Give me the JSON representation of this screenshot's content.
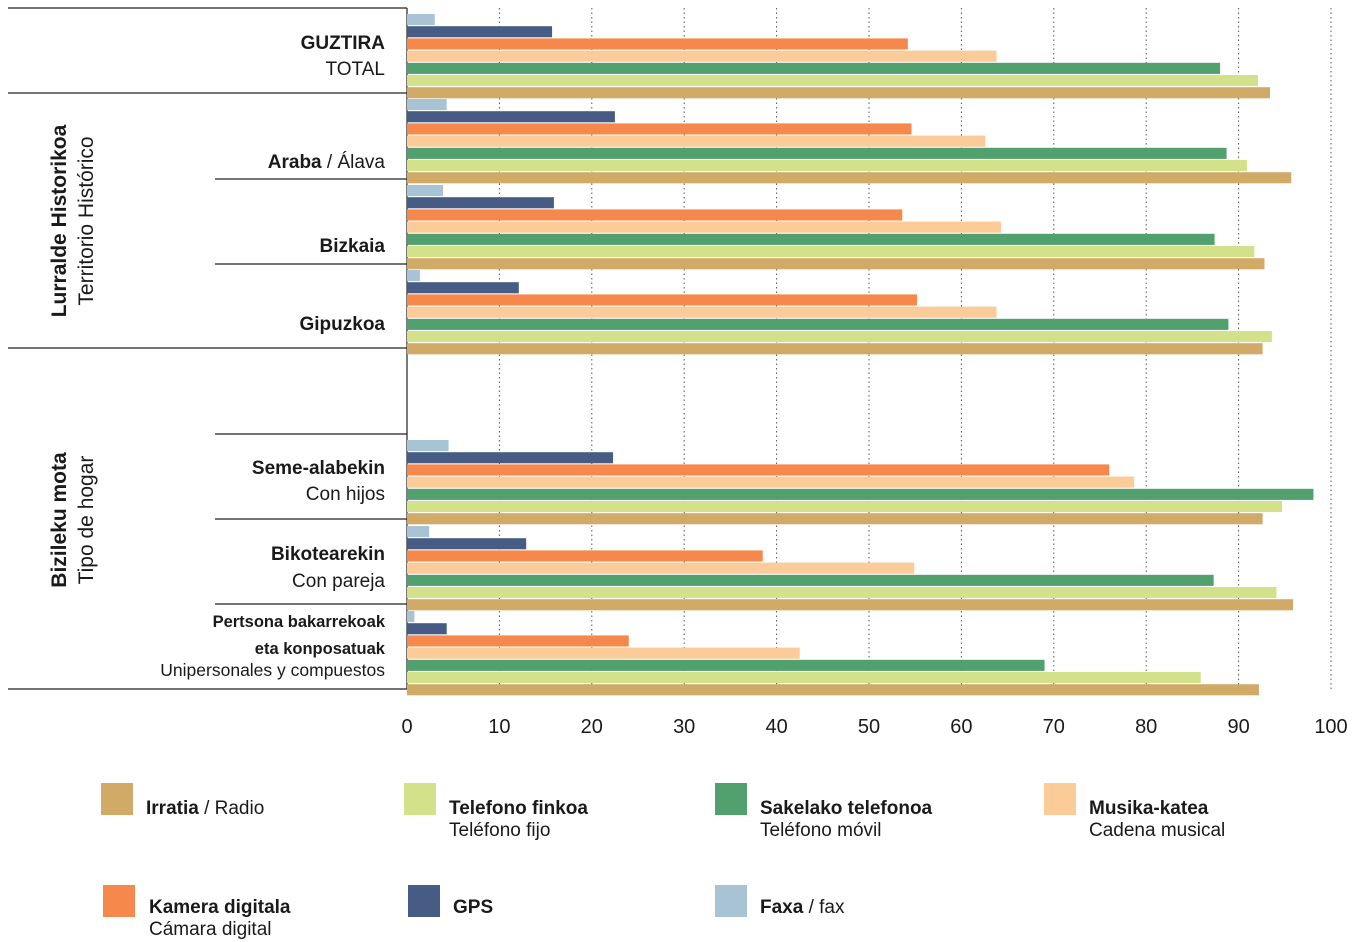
{
  "chart_data": {
    "type": "bar",
    "orientation": "horizontal",
    "xlim": [
      0,
      100
    ],
    "x_ticks": [
      0,
      10,
      20,
      30,
      40,
      50,
      60,
      70,
      80,
      90,
      100
    ],
    "grid": "vertical dotted",
    "groups": [
      {
        "name": "Lurralde Historikoa",
        "subname": "Territorio Histórico"
      },
      {
        "name": "Bizileku mota",
        "subname": "Tipo de hogar"
      }
    ],
    "categories": [
      {
        "bold": "GUZTIRA",
        "normal": "",
        "line2": "TOTAL"
      },
      {
        "bold": "Araba",
        "normal": " / Álava",
        "line2": ""
      },
      {
        "bold": "Bizkaia",
        "normal": "",
        "line2": ""
      },
      {
        "bold": "Gipuzkoa",
        "normal": "",
        "line2": ""
      },
      {
        "bold": "Seme-alabekin",
        "normal": "",
        "line2": "Con hijos"
      },
      {
        "bold": "Bikotearekin",
        "normal": "",
        "line2": "Con pareja"
      },
      {
        "bold": "Pertsona bakarrekoak",
        "bold2": "eta konposatuak",
        "normal": "",
        "line2": "Unipersonales y compuestos"
      }
    ],
    "series": [
      {
        "name": "Faxa",
        "name2": " / fax",
        "color": "#a8c4d4",
        "values": [
          3.0,
          4.3,
          3.9,
          1.4,
          4.5,
          2.4,
          0.8
        ]
      },
      {
        "name": "GPS",
        "name2": "",
        "color": "#465c85",
        "values": [
          15.7,
          22.5,
          15.9,
          12.1,
          22.3,
          12.9,
          4.3
        ]
      },
      {
        "name": "Kamera digitala",
        "name2": "Cámara digital",
        "color": "#f5884a",
        "values": [
          54.2,
          54.6,
          53.6,
          55.2,
          76.0,
          38.5,
          24.0
        ]
      },
      {
        "name": "Musika-katea",
        "name2": "Cadena musical",
        "color": "#fbcb98",
        "values": [
          63.8,
          62.6,
          64.3,
          63.8,
          78.7,
          54.9,
          42.5
        ]
      },
      {
        "name": "Sakelako telefonoa",
        "name2": "Teléfono móvil",
        "color": "#51a06e",
        "values": [
          88.0,
          88.7,
          87.4,
          88.9,
          98.1,
          87.3,
          69.0
        ]
      },
      {
        "name": "Telefono finkoa",
        "name2": "Teléfono fijo",
        "color": "#d2e18a",
        "values": [
          92.1,
          90.9,
          91.7,
          93.6,
          94.7,
          94.1,
          85.9
        ]
      },
      {
        "name": "Irratia",
        "name2": " / Radio",
        "color": "#d1aa67",
        "values": [
          93.4,
          95.7,
          92.8,
          92.6,
          92.6,
          95.9,
          92.2
        ]
      }
    ]
  },
  "legend": [
    {
      "bold": "Irratia",
      "normal": " / Radio",
      "line2": "",
      "color": "#d1aa67"
    },
    {
      "bold": "Telefono finkoa",
      "normal": "",
      "line2": "Teléfono fijo",
      "color": "#d2e18a"
    },
    {
      "bold": "Sakelako telefonoa",
      "normal": "",
      "line2": "Teléfono móvil",
      "color": "#51a06e"
    },
    {
      "bold": "Musika-katea",
      "normal": "",
      "line2": "Cadena musical",
      "color": "#fbcb98"
    },
    {
      "bold": "Kamera digitala",
      "normal": "",
      "line2": "Cámara digital",
      "color": "#f5884a"
    },
    {
      "bold": "GPS",
      "normal": "",
      "line2": "",
      "color": "#465c85"
    },
    {
      "bold": "Faxa",
      "normal": " / fax",
      "line2": "",
      "color": "#a8c4d4"
    }
  ]
}
